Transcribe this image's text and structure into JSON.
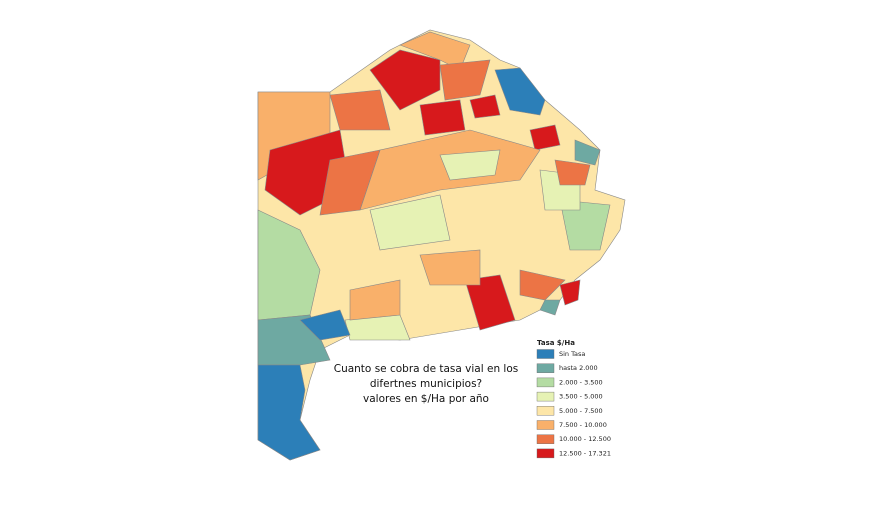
{
  "map": {
    "title_lines": [
      "Cuanto se cobra de tasa vial en los",
      "difertnes municipios?",
      "valores en $/Ha por año"
    ],
    "legend": {
      "title": "Tasa $/Ha",
      "items": [
        {
          "label": "Sin Tasa",
          "color": "#2c7fb8"
        },
        {
          "label": "hasta 2.000",
          "color": "#6ea9a2"
        },
        {
          "label": "2.000 - 3.500",
          "color": "#b4dca3"
        },
        {
          "label": "3.500 - 5.000",
          "color": "#e6f2b4"
        },
        {
          "label": "5.000 - 7.500",
          "color": "#fde6a8"
        },
        {
          "label": "7.500 - 10.000",
          "color": "#f9b06a"
        },
        {
          "label": "10.000 - 12.500",
          "color": "#ec7445"
        },
        {
          "label": "12.500 - 17.321",
          "color": "#d7191c"
        }
      ]
    }
  }
}
